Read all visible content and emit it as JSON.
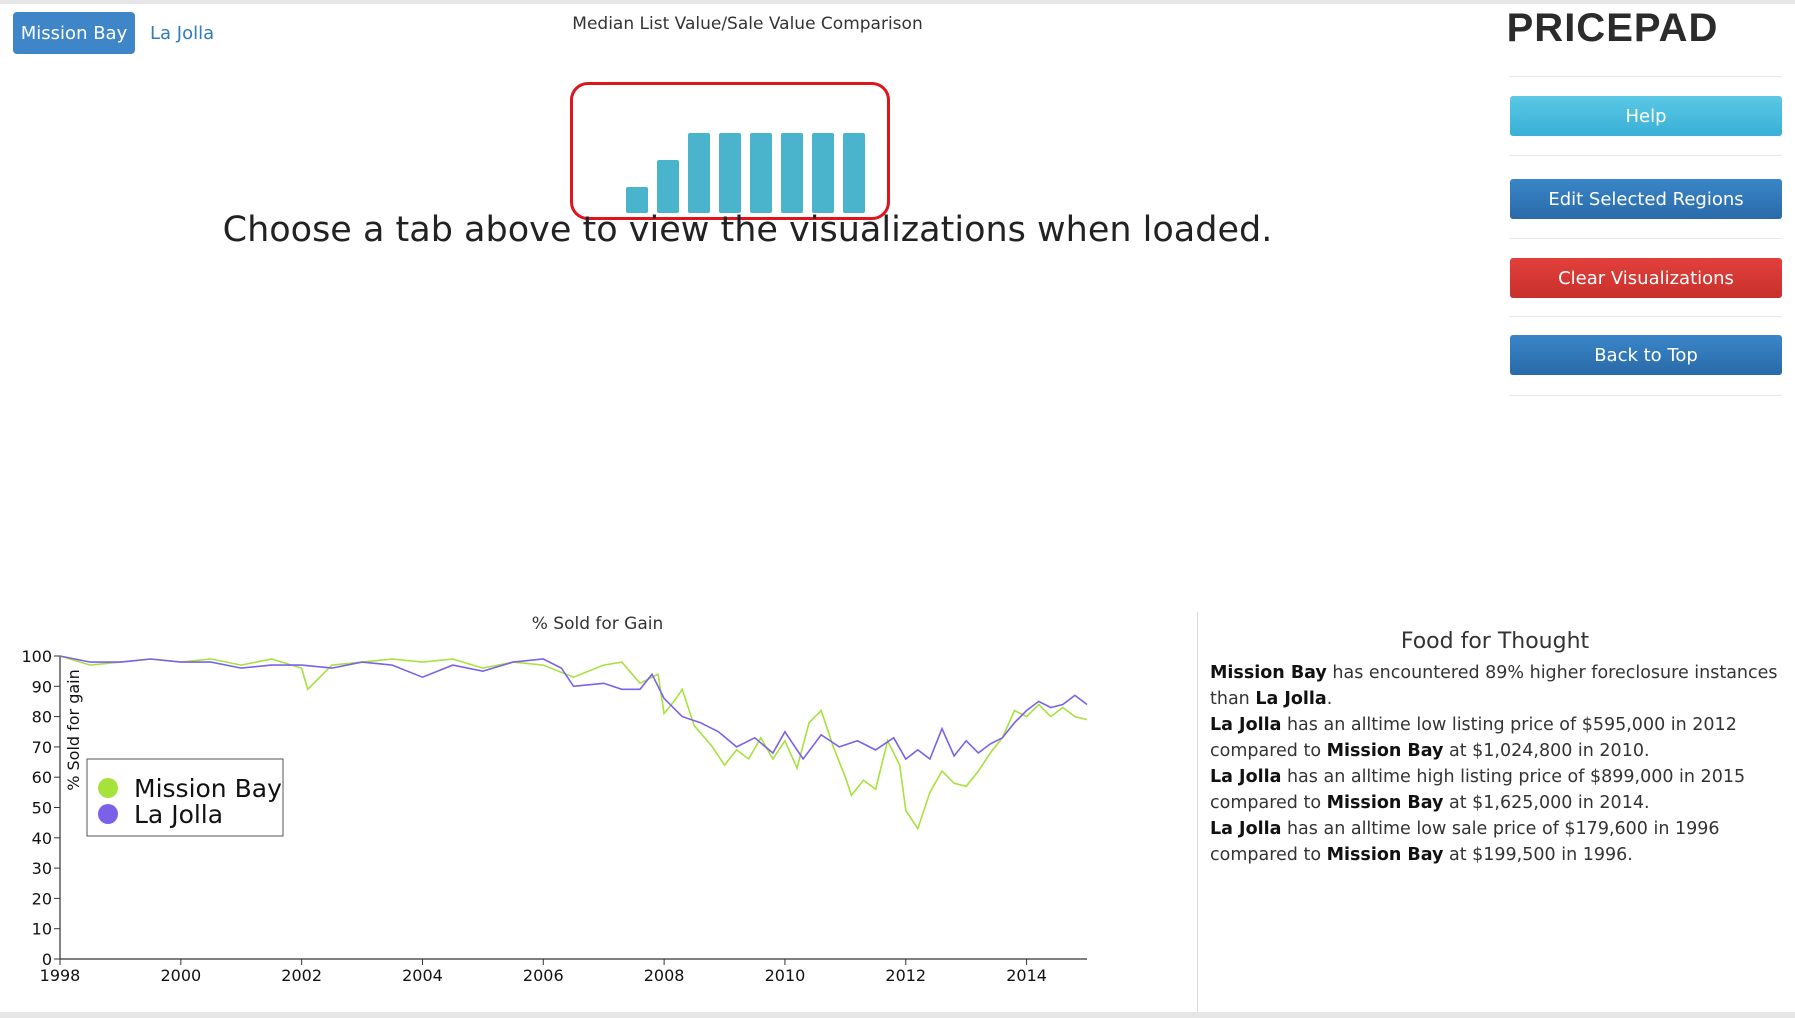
{
  "tabs": {
    "active": "Mission Bay",
    "other": "La Jolla"
  },
  "header": {
    "subtitle": "Median List Value/Sale Value Comparison",
    "brand": "PRICEPAD"
  },
  "main": {
    "message": "Choose a tab above to view the visualizations when loaded."
  },
  "loader": {
    "bar_levels": [
      0.32,
      0.66,
      1,
      1,
      1,
      1,
      1,
      1
    ]
  },
  "sidebar": {
    "help": "Help",
    "edit": "Edit Selected Regions",
    "clear": "Clear Visualizations",
    "top": "Back to Top"
  },
  "colors": {
    "accent_blue": "#3e86c7",
    "mission_bay": "#a6e23c",
    "la_jolla": "#7b61ea",
    "loader": "#4ab4cd",
    "clear_red": "#e0141c"
  },
  "chart_data": {
    "type": "line",
    "title": "% Sold for Gain",
    "ylabel": "% Sold for gain",
    "xlabel": "",
    "xlim": [
      1998,
      2015
    ],
    "ylim": [
      0,
      100
    ],
    "xticks": [
      1998,
      2000,
      2002,
      2004,
      2006,
      2008,
      2010,
      2012,
      2014
    ],
    "yticks": [
      0,
      10,
      20,
      30,
      40,
      50,
      60,
      70,
      80,
      90,
      100
    ],
    "legend_position": "left",
    "series": [
      {
        "name": "Mission Bay",
        "color": "#a6e23c",
        "points": [
          [
            1998,
            100
          ],
          [
            1998.5,
            97
          ],
          [
            1999,
            98
          ],
          [
            1999.5,
            99
          ],
          [
            2000,
            98
          ],
          [
            2000.5,
            99
          ],
          [
            2001,
            97
          ],
          [
            2001.5,
            99
          ],
          [
            2002,
            96
          ],
          [
            2002.1,
            89
          ],
          [
            2002.5,
            97
          ],
          [
            2003,
            98
          ],
          [
            2003.5,
            99
          ],
          [
            2004,
            98
          ],
          [
            2004.5,
            99
          ],
          [
            2005,
            96
          ],
          [
            2005.5,
            98
          ],
          [
            2006,
            97
          ],
          [
            2006.5,
            93
          ],
          [
            2007,
            97
          ],
          [
            2007.3,
            98
          ],
          [
            2007.6,
            91
          ],
          [
            2007.9,
            94
          ],
          [
            2008,
            81
          ],
          [
            2008.2,
            86
          ],
          [
            2008.3,
            89
          ],
          [
            2008.5,
            77
          ],
          [
            2008.8,
            70
          ],
          [
            2009,
            64
          ],
          [
            2009.2,
            69
          ],
          [
            2009.4,
            66
          ],
          [
            2009.6,
            73
          ],
          [
            2009.8,
            66
          ],
          [
            2010,
            72
          ],
          [
            2010.2,
            63
          ],
          [
            2010.4,
            78
          ],
          [
            2010.6,
            82
          ],
          [
            2010.8,
            70
          ],
          [
            2011,
            60
          ],
          [
            2011.1,
            54
          ],
          [
            2011.3,
            59
          ],
          [
            2011.5,
            56
          ],
          [
            2011.7,
            72
          ],
          [
            2011.9,
            64
          ],
          [
            2012,
            49
          ],
          [
            2012.2,
            43
          ],
          [
            2012.4,
            55
          ],
          [
            2012.6,
            62
          ],
          [
            2012.8,
            58
          ],
          [
            2013,
            57
          ],
          [
            2013.2,
            62
          ],
          [
            2013.4,
            68
          ],
          [
            2013.6,
            73
          ],
          [
            2013.8,
            82
          ],
          [
            2014,
            80
          ],
          [
            2014.2,
            84
          ],
          [
            2014.4,
            80
          ],
          [
            2014.6,
            83
          ],
          [
            2014.8,
            80
          ],
          [
            2015,
            79
          ]
        ]
      },
      {
        "name": "La Jolla",
        "color": "#7b61ea",
        "points": [
          [
            1998,
            100
          ],
          [
            1998.5,
            98
          ],
          [
            1999,
            98
          ],
          [
            1999.5,
            99
          ],
          [
            2000,
            98
          ],
          [
            2000.5,
            98
          ],
          [
            2001,
            96
          ],
          [
            2001.5,
            97
          ],
          [
            2002,
            97
          ],
          [
            2002.5,
            96
          ],
          [
            2003,
            98
          ],
          [
            2003.5,
            97
          ],
          [
            2004,
            93
          ],
          [
            2004.5,
            97
          ],
          [
            2005,
            95
          ],
          [
            2005.5,
            98
          ],
          [
            2006,
            99
          ],
          [
            2006.3,
            96
          ],
          [
            2006.5,
            90
          ],
          [
            2007,
            91
          ],
          [
            2007.3,
            89
          ],
          [
            2007.6,
            89
          ],
          [
            2007.8,
            94
          ],
          [
            2008,
            86
          ],
          [
            2008.3,
            80
          ],
          [
            2008.6,
            78
          ],
          [
            2008.9,
            75
          ],
          [
            2009.2,
            70
          ],
          [
            2009.5,
            73
          ],
          [
            2009.8,
            68
          ],
          [
            2010,
            75
          ],
          [
            2010.3,
            66
          ],
          [
            2010.6,
            74
          ],
          [
            2010.9,
            70
          ],
          [
            2011.2,
            72
          ],
          [
            2011.5,
            69
          ],
          [
            2011.8,
            73
          ],
          [
            2012,
            66
          ],
          [
            2012.2,
            69
          ],
          [
            2012.4,
            66
          ],
          [
            2012.6,
            76
          ],
          [
            2012.8,
            67
          ],
          [
            2013,
            72
          ],
          [
            2013.2,
            68
          ],
          [
            2013.4,
            71
          ],
          [
            2013.6,
            73
          ],
          [
            2013.8,
            78
          ],
          [
            2014,
            82
          ],
          [
            2014.2,
            85
          ],
          [
            2014.4,
            83
          ],
          [
            2014.6,
            84
          ],
          [
            2014.8,
            87
          ],
          [
            2015,
            84
          ]
        ]
      }
    ]
  },
  "food_for_thought": {
    "title": "Food for Thought",
    "l1_a": "Mission Bay",
    "l1_b": " has encountered 89% higher foreclosure instances than ",
    "l1_c": "La Jolla",
    "l1_d": ".",
    "l2_a": "La Jolla",
    "l2_b": " has an alltime low listing price of $595,000 in 2012 compared to ",
    "l2_c": "Mission Bay",
    "l2_d": " at $1,024,800 in 2010.",
    "l3_a": "La Jolla",
    "l3_b": " has an alltime high listing price of $899,000 in 2015 compared to ",
    "l3_c": "Mission Bay",
    "l3_d": " at $1,625,000 in 2014.",
    "l4_a": "La Jolla",
    "l4_b": " has an alltime low sale price of $179,600 in 1996 compared to ",
    "l4_c": "Mission Bay",
    "l4_d": " at $199,500 in 1996."
  }
}
